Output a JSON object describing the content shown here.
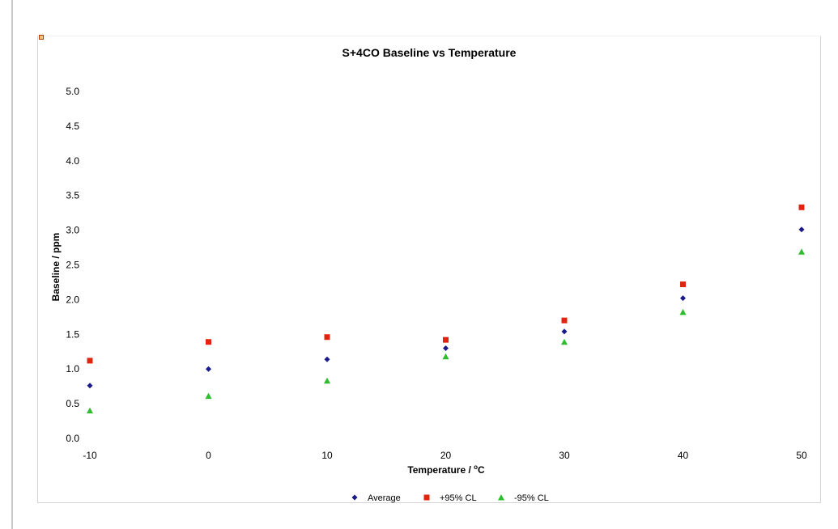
{
  "chart_data": {
    "type": "scatter",
    "title": "S+4CO Baseline vs Temperature",
    "xlabel": "Temperature / ",
    "xlabel_superscript": "o",
    "xlabel_unit": "C",
    "ylabel": "Baseline / ppm",
    "x": [
      -10,
      0,
      10,
      20,
      30,
      40,
      50
    ],
    "xlim": [
      -10,
      50
    ],
    "ylim": [
      0,
      5
    ],
    "x_ticks": [
      "-10",
      "0",
      "10",
      "20",
      "30",
      "40",
      "50"
    ],
    "y_ticks": [
      "0.0",
      "0.5",
      "1.0",
      "1.5",
      "2.0",
      "2.5",
      "3.0",
      "3.5",
      "4.0",
      "4.5",
      "5.0"
    ],
    "grid": false,
    "legend_position": "bottom",
    "series": [
      {
        "name": "Average",
        "marker": "diamond",
        "color": "#1a1a8c",
        "values": [
          0.76,
          1.0,
          1.14,
          1.3,
          1.54,
          2.02,
          3.01
        ]
      },
      {
        "name": "+95% CL",
        "marker": "square",
        "color": "#e0240f",
        "values": [
          1.12,
          1.39,
          1.46,
          1.42,
          1.7,
          2.22,
          3.33
        ]
      },
      {
        "name": "-95% CL",
        "marker": "triangle",
        "color": "#2ebd2e",
        "values": [
          0.4,
          0.61,
          0.83,
          1.18,
          1.39,
          1.82,
          2.69
        ]
      }
    ]
  }
}
